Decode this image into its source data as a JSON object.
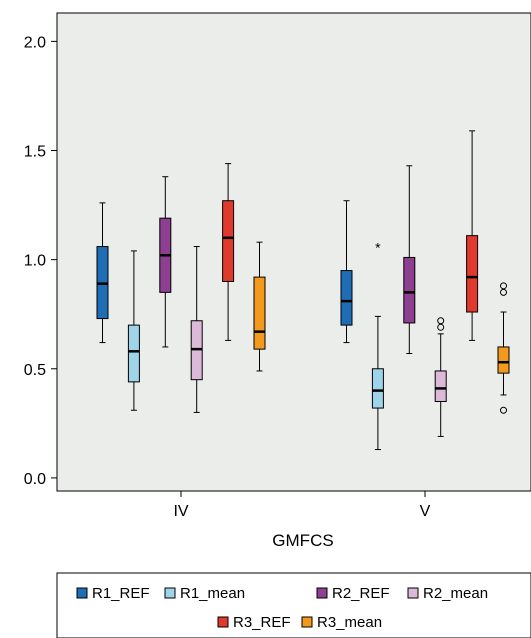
{
  "chart_data": {
    "type": "boxplot",
    "xlabel": "GMFCS",
    "ylabel": "",
    "ylim": [
      -0.06,
      2.13
    ],
    "yticks": [
      "0.0",
      "0.5",
      "1.0",
      "1.5",
      "2.0"
    ],
    "ytick_values": [
      0.0,
      0.5,
      1.0,
      1.5,
      2.0
    ],
    "categories": [
      "IV",
      "V"
    ],
    "grid": false,
    "legend_position": "bottom",
    "background": "#ebedeb",
    "series": [
      {
        "name": "R1_REF",
        "color": "#1f6db4",
        "boxes": [
          {
            "whisker_low": 0.62,
            "q1": 0.73,
            "median": 0.89,
            "q3": 1.06,
            "whisker_high": 1.26,
            "outliers": [],
            "extremes": []
          },
          {
            "whisker_low": 0.62,
            "q1": 0.7,
            "median": 0.81,
            "q3": 0.95,
            "whisker_high": 1.27,
            "outliers": [],
            "extremes": []
          }
        ]
      },
      {
        "name": "R1_mean",
        "color": "#9fd3ea",
        "boxes": [
          {
            "whisker_low": 0.31,
            "q1": 0.44,
            "median": 0.58,
            "q3": 0.7,
            "whisker_high": 1.04,
            "outliers": [],
            "extremes": []
          },
          {
            "whisker_low": 0.13,
            "q1": 0.32,
            "median": 0.4,
            "q3": 0.5,
            "whisker_high": 0.74,
            "outliers": [],
            "extremes": [
              1.06
            ]
          }
        ]
      },
      {
        "name": "R2_REF",
        "color": "#8e3f92",
        "boxes": [
          {
            "whisker_low": 0.6,
            "q1": 0.85,
            "median": 1.02,
            "q3": 1.19,
            "whisker_high": 1.38,
            "outliers": [],
            "extremes": []
          },
          {
            "whisker_low": 0.57,
            "q1": 0.71,
            "median": 0.85,
            "q3": 1.01,
            "whisker_high": 1.43,
            "outliers": [],
            "extremes": []
          }
        ]
      },
      {
        "name": "R2_mean",
        "color": "#dcb8d9",
        "boxes": [
          {
            "whisker_low": 0.3,
            "q1": 0.45,
            "median": 0.59,
            "q3": 0.72,
            "whisker_high": 1.06,
            "outliers": [],
            "extremes": []
          },
          {
            "whisker_low": 0.19,
            "q1": 0.35,
            "median": 0.41,
            "q3": 0.49,
            "whisker_high": 0.66,
            "outliers": [
              0.69,
              0.72
            ],
            "extremes": []
          }
        ]
      },
      {
        "name": "R3_REF",
        "color": "#e03a2c",
        "boxes": [
          {
            "whisker_low": 0.63,
            "q1": 0.9,
            "median": 1.1,
            "q3": 1.27,
            "whisker_high": 1.44,
            "outliers": [],
            "extremes": []
          },
          {
            "whisker_low": 0.63,
            "q1": 0.76,
            "median": 0.92,
            "q3": 1.11,
            "whisker_high": 1.59,
            "outliers": [],
            "extremes": []
          }
        ]
      },
      {
        "name": "R3_mean",
        "color": "#f39a1d",
        "boxes": [
          {
            "whisker_low": 0.49,
            "q1": 0.59,
            "median": 0.67,
            "q3": 0.92,
            "whisker_high": 1.08,
            "outliers": [],
            "extremes": []
          },
          {
            "whisker_low": 0.38,
            "q1": 0.48,
            "median": 0.53,
            "q3": 0.6,
            "whisker_high": 0.76,
            "outliers": [
              0.31,
              0.85,
              0.88
            ],
            "extremes": []
          }
        ]
      }
    ]
  }
}
